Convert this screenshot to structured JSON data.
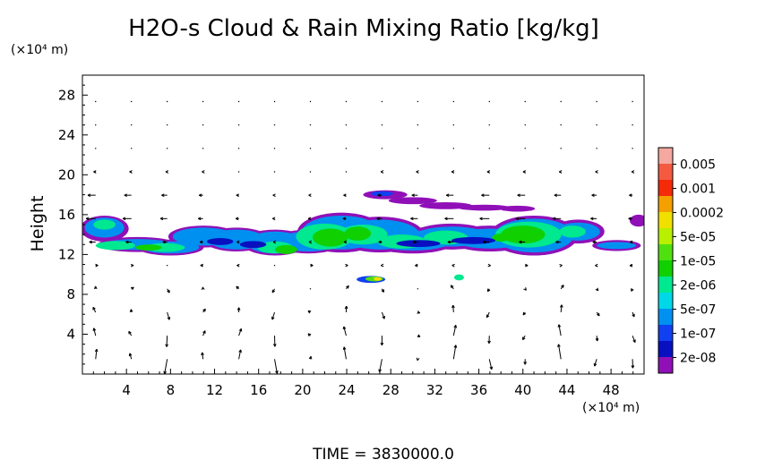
{
  "chart_data": {
    "type": "heatmap",
    "title": "H2O-s Cloud & Rain Mixing Ratio [kg/kg]",
    "xlabel": "",
    "x_unit": "(×10⁴ m)",
    "ylabel": "Height",
    "y_unit": "(×10⁴ m)",
    "xlim": [
      0,
      51
    ],
    "ylim": [
      0,
      30
    ],
    "x_ticks": [
      4,
      8,
      12,
      16,
      20,
      24,
      28,
      32,
      36,
      40,
      44,
      48
    ],
    "y_ticks": [
      4,
      8,
      12,
      16,
      20,
      24,
      28
    ],
    "grid": false,
    "colorbar": {
      "labels": [
        "0.005",
        "0.001",
        "0.0002",
        "5e-05",
        "1e-05",
        "2e-06",
        "5e-07",
        "1e-07",
        "2e-08"
      ],
      "colors": [
        "#f4a8a0",
        "#f45a40",
        "#f42a08",
        "#f4a000",
        "#f0e000",
        "#b8f000",
        "#50e010",
        "#10d000",
        "#00e890",
        "#00d8e8",
        "#0090f0",
        "#1040f0",
        "#0810c0",
        "#9010b8"
      ]
    },
    "cloud_layers": [
      {
        "name": "main-layer",
        "x_range": [
          0,
          51
        ],
        "y_range": [
          11.9,
          16.3
        ],
        "peak_level": "1e-05"
      },
      {
        "name": "upper-streak",
        "x_range": [
          25.5,
          41
        ],
        "y_range": [
          16.5,
          18.5
        ],
        "peak_level": "2e-08"
      },
      {
        "name": "small-cell-a",
        "x_range": [
          25,
          27.5
        ],
        "y_range": [
          9.2,
          9.9
        ],
        "peak_level": "5e-05"
      },
      {
        "name": "small-cell-b",
        "x_range": [
          33.8,
          34.6
        ],
        "y_range": [
          9.4,
          10
        ],
        "peak_level": "2e-06"
      }
    ],
    "wind_vectors": "horizontal wind dominant at heights 12–20, strong vertical motion below 10"
  },
  "footer": {
    "time_text": "TIME = 3830000.0"
  }
}
